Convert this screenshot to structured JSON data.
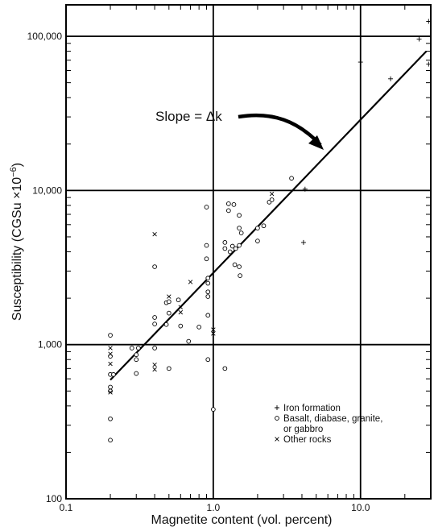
{
  "chart_data": {
    "type": "scatter",
    "x_scale": "log",
    "y_scale": "log",
    "xlim": [
      0.1,
      30
    ],
    "ylim": [
      100,
      160000
    ],
    "x_ticks": [
      {
        "value": 0.1,
        "label": "0.1"
      },
      {
        "value": 1,
        "label": "1.0"
      },
      {
        "value": 10,
        "label": "10.0"
      }
    ],
    "y_ticks": [
      {
        "value": 100,
        "label": "100"
      },
      {
        "value": 1000,
        "label": "1,000"
      },
      {
        "value": 10000,
        "label": "10,000"
      },
      {
        "value": 100000,
        "label": "100,000"
      }
    ],
    "xlabel": "Magnetite content (vol. percent)",
    "ylabel": "Susceptibility (CGSu ×10",
    "ylabel_exponent": "−6",
    "ylabel_close": ")",
    "grid": "major only",
    "legend_placement": "bottom-right",
    "annotation": {
      "text": "Slope = Δk",
      "target": {
        "x": 5.5,
        "y": 15500
      }
    },
    "fit_line": {
      "points": [
        {
          "x": 0.2,
          "y": 590
        },
        {
          "x": 28,
          "y": 80000
        }
      ]
    },
    "series": [
      {
        "name": "Iron formation",
        "marker": "plus",
        "points": [
          [
            4.2,
            10200
          ],
          [
            4.1,
            4600
          ],
          [
            10,
            68000
          ],
          [
            16,
            53000
          ],
          [
            25,
            96000
          ],
          [
            29,
            125000
          ],
          [
            29,
            66000
          ]
        ]
      },
      {
        "name": "Basalt, diabase, granite, or gabbro",
        "marker": "circle",
        "points": [
          [
            0.2,
            1150
          ],
          [
            0.2,
            840
          ],
          [
            0.2,
            640
          ],
          [
            0.2,
            530
          ],
          [
            0.2,
            500
          ],
          [
            0.2,
            330
          ],
          [
            0.2,
            240
          ],
          [
            0.21,
            640
          ],
          [
            0.28,
            950
          ],
          [
            0.3,
            860
          ],
          [
            0.3,
            800
          ],
          [
            0.3,
            650
          ],
          [
            0.31,
            950
          ],
          [
            0.4,
            3200
          ],
          [
            0.4,
            1500
          ],
          [
            0.4,
            1360
          ],
          [
            0.4,
            950
          ],
          [
            0.48,
            1350
          ],
          [
            0.48,
            1870
          ],
          [
            0.5,
            1900
          ],
          [
            0.5,
            1600
          ],
          [
            0.5,
            700
          ],
          [
            0.58,
            1950
          ],
          [
            0.6,
            1320
          ],
          [
            0.68,
            1050
          ],
          [
            0.8,
            1300
          ],
          [
            0.9,
            7800
          ],
          [
            0.9,
            4400
          ],
          [
            0.9,
            3600
          ],
          [
            0.92,
            2700
          ],
          [
            0.92,
            2500
          ],
          [
            0.92,
            2200
          ],
          [
            0.92,
            2050
          ],
          [
            0.92,
            1550
          ],
          [
            0.92,
            800
          ],
          [
            1.0,
            380
          ],
          [
            1.2,
            4600
          ],
          [
            1.2,
            4200
          ],
          [
            1.2,
            700
          ],
          [
            1.27,
            8200
          ],
          [
            1.27,
            7400
          ],
          [
            1.3,
            4000
          ],
          [
            1.35,
            4350
          ],
          [
            1.38,
            8100
          ],
          [
            1.4,
            3300
          ],
          [
            1.42,
            4200
          ],
          [
            1.5,
            6900
          ],
          [
            1.5,
            5700
          ],
          [
            1.5,
            4400
          ],
          [
            1.5,
            3200
          ],
          [
            1.52,
            2800
          ],
          [
            1.55,
            5300
          ],
          [
            2.0,
            5700
          ],
          [
            2.0,
            4700
          ],
          [
            2.2,
            5900
          ],
          [
            2.4,
            8400
          ],
          [
            2.5,
            8700
          ],
          [
            3.4,
            12000
          ]
        ]
      },
      {
        "name": "Other rocks",
        "marker": "x",
        "points": [
          [
            0.2,
            950
          ],
          [
            0.2,
            870
          ],
          [
            0.2,
            750
          ],
          [
            0.2,
            490
          ],
          [
            0.4,
            5200
          ],
          [
            0.4,
            740
          ],
          [
            0.4,
            690
          ],
          [
            0.5,
            2050
          ],
          [
            0.6,
            1750
          ],
          [
            0.6,
            1620
          ],
          [
            0.7,
            2550
          ],
          [
            1.0,
            1250
          ],
          [
            1.0,
            1180
          ],
          [
            2.5,
            9500
          ]
        ]
      }
    ]
  }
}
